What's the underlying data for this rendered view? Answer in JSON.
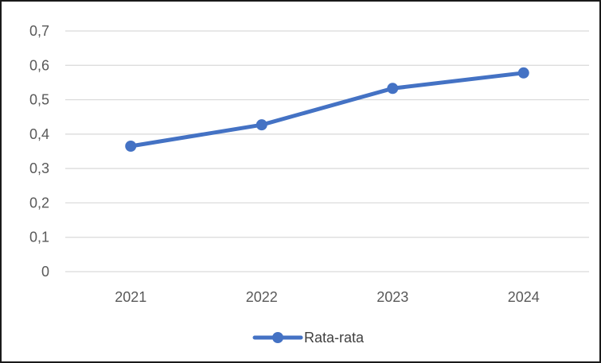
{
  "chart_data": {
    "type": "line",
    "title": "",
    "xlabel": "",
    "ylabel": "",
    "categories": [
      "2021",
      "2022",
      "2023",
      "2024"
    ],
    "series": [
      {
        "name": "Rata-rata",
        "values": [
          0.365,
          0.427,
          0.533,
          0.578
        ],
        "color": "#4472C4"
      }
    ],
    "ylim": [
      0,
      0.7
    ],
    "yticks": [
      0,
      0.1,
      0.2,
      0.3,
      0.4,
      0.5,
      0.6,
      0.7
    ],
    "ytick_labels": [
      "0",
      "0,1",
      "0,2",
      "0,3",
      "0,4",
      "0,5",
      "0,6",
      "0,7"
    ],
    "grid": true,
    "gridline_color": "#d9d9d9",
    "legend_position": "bottom"
  }
}
